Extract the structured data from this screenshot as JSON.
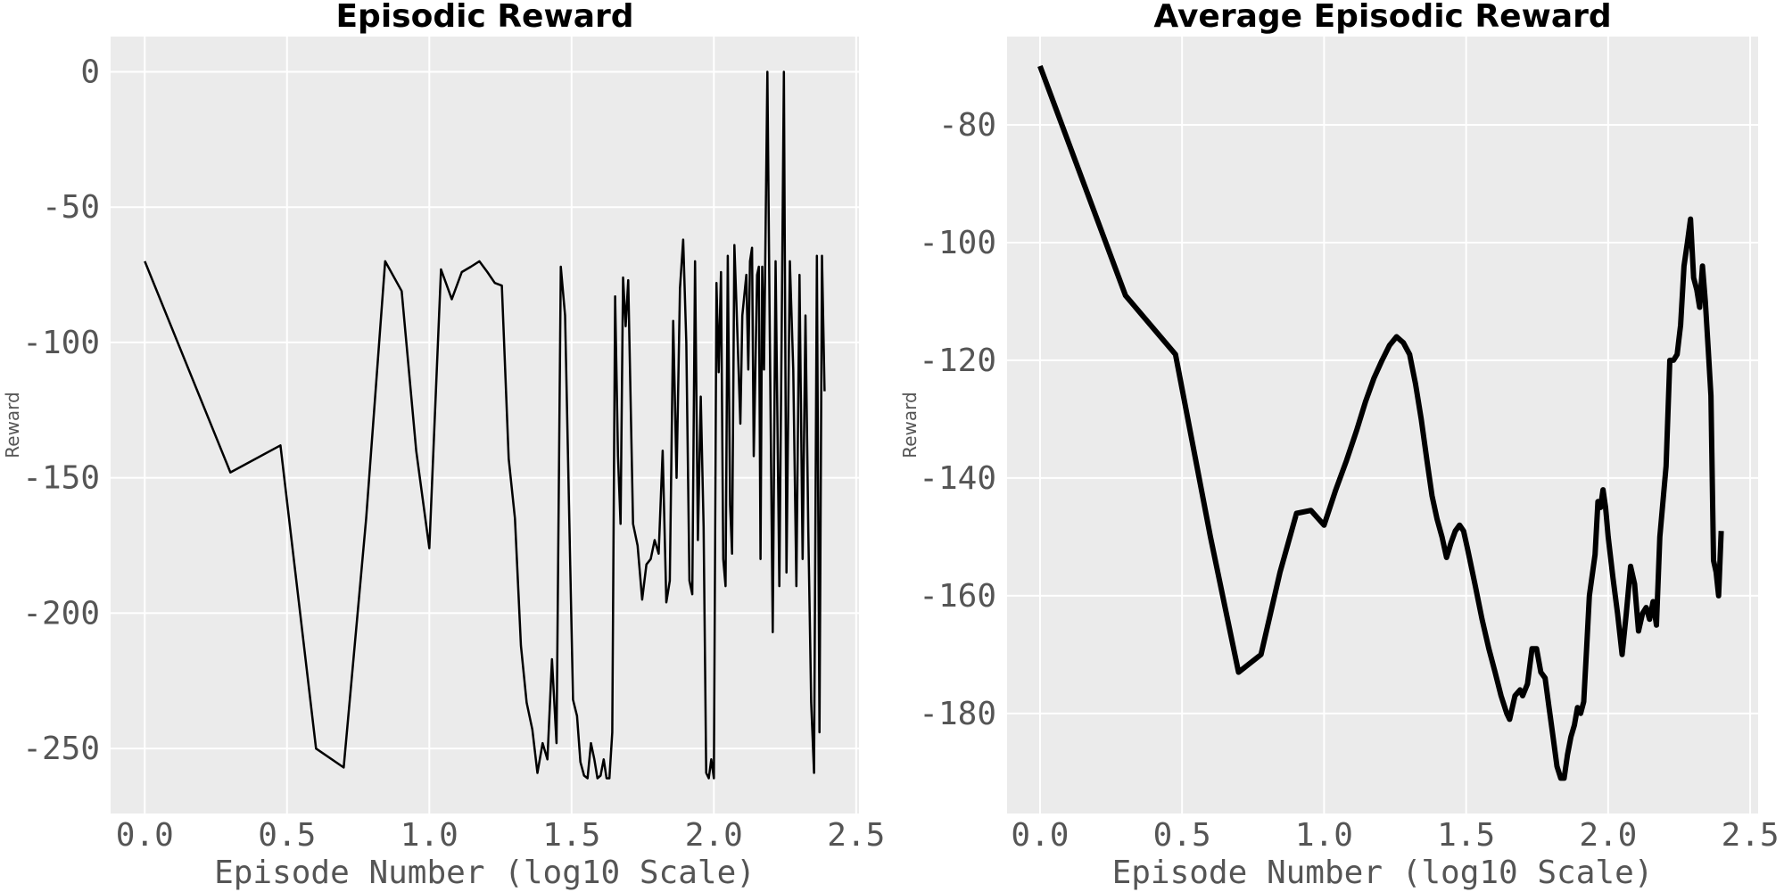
{
  "chart_data": [
    {
      "type": "line",
      "title": "Episodic Reward",
      "xlabel": "Episode Number (log10 Scale)",
      "ylabel": "Reward",
      "color": "#000000",
      "grid": true,
      "xlim": [
        -0.12,
        2.51
      ],
      "xticks": [
        {
          "value": 0,
          "label": "0.0"
        },
        0.5,
        {
          "value": 1,
          "label": "1.0"
        },
        1.5,
        {
          "value": 2,
          "label": "2.0"
        },
        2.5
      ],
      "ylim": [
        -274,
        13
      ],
      "yticks": [
        0,
        -50,
        -100,
        -150,
        -200,
        -250
      ],
      "x": [
        0,
        0.301,
        0.477,
        0.602,
        0.699,
        0.778,
        0.845,
        0.903,
        0.954,
        1.0,
        1.041,
        1.079,
        1.114,
        1.146,
        1.176,
        1.204,
        1.23,
        1.255,
        1.279,
        1.301,
        1.322,
        1.342,
        1.362,
        1.38,
        1.398,
        1.415,
        1.431,
        1.447,
        1.462,
        1.477,
        1.491,
        1.505,
        1.519,
        1.531,
        1.544,
        1.556,
        1.568,
        1.58,
        1.591,
        1.602,
        1.613,
        1.623,
        1.633,
        1.643,
        1.653,
        1.663,
        1.672,
        1.681,
        1.69,
        1.699,
        1.716,
        1.732,
        1.748,
        1.763,
        1.778,
        1.792,
        1.806,
        1.82,
        1.833,
        1.845,
        1.857,
        1.869,
        1.881,
        1.892,
        1.903,
        1.914,
        1.924,
        1.934,
        1.944,
        1.954,
        1.964,
        1.973,
        1.982,
        1.991,
        2.0,
        2.009,
        2.017,
        2.025,
        2.033,
        2.041,
        2.049,
        2.057,
        2.064,
        2.072,
        2.079,
        2.093,
        2.1,
        2.114,
        2.121,
        2.127,
        2.134,
        2.14,
        2.152,
        2.158,
        2.164,
        2.17,
        2.176,
        2.188,
        2.196,
        2.207,
        2.217,
        2.23,
        2.238,
        2.246,
        2.255,
        2.267,
        2.279,
        2.29,
        2.301,
        2.312,
        2.322,
        2.332,
        2.342,
        2.352,
        2.362,
        2.371,
        2.38,
        2.389
      ],
      "values": [
        -70,
        -148,
        -138,
        -250,
        -257,
        -165,
        -70,
        -81,
        -140,
        -176,
        -73,
        -84,
        -74,
        -72,
        -70,
        -74,
        -78,
        -79,
        -143,
        -165,
        -212,
        -233,
        -243,
        -259,
        -248,
        -254,
        -217,
        -248,
        -72,
        -90,
        -160,
        -232,
        -238,
        -255,
        -260,
        -261,
        -248,
        -254,
        -261,
        -260,
        -254,
        -261,
        -261,
        -244,
        -83,
        -142,
        -167,
        -76,
        -94,
        -77,
        -167,
        -175,
        -195,
        -182,
        -180,
        -173,
        -178,
        -140,
        -196,
        -188,
        -92,
        -150,
        -80,
        -62,
        -100,
        -188,
        -193,
        -70,
        -173,
        -120,
        -168,
        -259,
        -261,
        -254,
        -261,
        -78,
        -111,
        -74,
        -180,
        -190,
        -68,
        -160,
        -178,
        -64,
        -85,
        -130,
        -90,
        -75,
        -110,
        -70,
        -65,
        -142,
        -75,
        -72,
        -180,
        -72,
        -110,
        0,
        -90,
        -207,
        -70,
        -190,
        -100,
        0,
        -185,
        -70,
        -110,
        -190,
        -75,
        -180,
        -90,
        -170,
        -233,
        -259,
        -68,
        -244,
        -68,
        -118
      ]
    },
    {
      "type": "line",
      "title": "Average Episodic Reward",
      "xlabel": "Episode Number (log10 Scale)",
      "ylabel": "Reward",
      "color": "#000000",
      "grid": true,
      "xlim": [
        -0.116,
        2.528
      ],
      "xticks": [
        {
          "value": 0,
          "label": "0.0"
        },
        0.5,
        {
          "value": 1,
          "label": "1.0"
        },
        1.5,
        {
          "value": 2,
          "label": "2.0"
        },
        2.5
      ],
      "ylim": [
        -197,
        -65
      ],
      "yticks": [
        -80,
        -100,
        -120,
        -140,
        -160,
        -180
      ],
      "x": [
        0,
        0.301,
        0.477,
        0.6,
        0.699,
        0.778,
        0.845,
        0.903,
        0.954,
        1.0,
        1.041,
        1.079,
        1.114,
        1.146,
        1.176,
        1.204,
        1.23,
        1.255,
        1.279,
        1.301,
        1.322,
        1.342,
        1.362,
        1.38,
        1.398,
        1.415,
        1.431,
        1.447,
        1.462,
        1.477,
        1.491,
        1.505,
        1.531,
        1.556,
        1.58,
        1.602,
        1.623,
        1.643,
        1.653,
        1.672,
        1.69,
        1.699,
        1.716,
        1.732,
        1.748,
        1.763,
        1.778,
        1.792,
        1.806,
        1.82,
        1.833,
        1.845,
        1.857,
        1.869,
        1.881,
        1.892,
        1.903,
        1.914,
        1.924,
        1.934,
        1.954,
        1.964,
        1.973,
        1.982,
        1.991,
        2.0,
        2.017,
        2.033,
        2.049,
        2.064,
        2.079,
        2.093,
        2.107,
        2.121,
        2.134,
        2.146,
        2.158,
        2.17,
        2.182,
        2.204,
        2.217,
        2.23,
        2.243,
        2.255,
        2.267,
        2.279,
        2.29,
        2.301,
        2.312,
        2.322,
        2.332,
        2.342,
        2.352,
        2.362,
        2.371,
        2.38,
        2.389,
        2.398
      ],
      "values": [
        -70,
        -109,
        -119,
        -150,
        -173,
        -170,
        -156,
        -146,
        -145.5,
        -148,
        -142,
        -137,
        -132,
        -127,
        -123,
        -120,
        -117.5,
        -116,
        -117,
        -119,
        -124,
        -130,
        -137,
        -143,
        -147,
        -150,
        -153.5,
        -151,
        -149,
        -148,
        -149,
        -152,
        -158,
        -164,
        -169,
        -173,
        -177,
        -180,
        -181,
        -177,
        -176,
        -177,
        -175,
        -169,
        -169,
        -173,
        -174,
        -179,
        -184,
        -189,
        -191,
        -191,
        -187,
        -184,
        -182,
        -179,
        -180,
        -178,
        -169,
        -160,
        -153,
        -144,
        -145,
        -142,
        -145,
        -150,
        -157,
        -163,
        -170,
        -163,
        -155,
        -158,
        -166,
        -163,
        -162,
        -164,
        -161,
        -165,
        -150,
        -138,
        -120,
        -120,
        -119,
        -114,
        -104,
        -100,
        -96,
        -106,
        -108,
        -111,
        -104,
        -110,
        -118,
        -126,
        -154,
        -156,
        -160,
        -149
      ]
    }
  ]
}
